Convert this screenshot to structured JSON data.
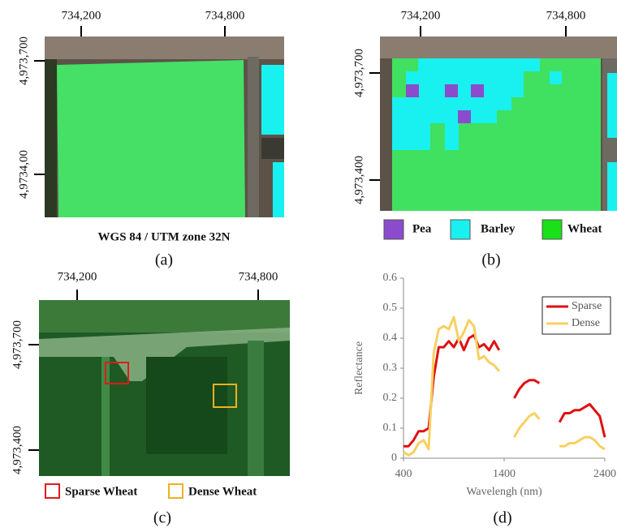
{
  "panels": [
    {
      "label": "(a)",
      "x_ticks": [
        "734,200",
        "734,800"
      ],
      "y_ticks": [
        "4,973,700",
        "4,9734,00"
      ],
      "caption": "WGS 84 / UTM zone 32N"
    },
    {
      "label": "(b)",
      "x_ticks": [
        "734,200",
        "734,800"
      ],
      "y_ticks": [
        "4,973,700",
        "4,973,400"
      ],
      "legend": [
        "Pea",
        "Barley",
        "Wheat"
      ]
    },
    {
      "label": "(c)",
      "x_ticks": [
        "734,200",
        "734,800"
      ],
      "y_ticks": [
        "4,973,700",
        "4,973,400"
      ],
      "legend": [
        "Sparse Wheat",
        "Dense Wheat"
      ]
    }
  ],
  "chart_data": {
    "type": "line",
    "panel_label": "(d)",
    "x_label": "Wavelengh (nm)",
    "y_label": "Reflectance",
    "x": [
      400,
      450,
      500,
      550,
      600,
      650,
      700,
      750,
      800,
      850,
      900,
      950,
      1000,
      1050,
      1100,
      1150,
      1200,
      1250,
      1300,
      1350,
      1400,
      1450,
      1500,
      1550,
      1600,
      1650,
      1700,
      1750,
      1800,
      1850,
      1900,
      1950,
      2000,
      2050,
      2100,
      2150,
      2200,
      2250,
      2300,
      2350,
      2400
    ],
    "series": [
      {
        "name": "Sparse",
        "color": "#e01010",
        "values": [
          0.04,
          0.04,
          0.06,
          0.09,
          0.09,
          0.1,
          0.27,
          0.37,
          0.37,
          0.39,
          0.37,
          0.4,
          0.36,
          0.4,
          0.41,
          0.37,
          0.38,
          0.36,
          0.39,
          0.36,
          null,
          null,
          0.2,
          0.23,
          0.25,
          0.26,
          0.26,
          0.25,
          null,
          null,
          null,
          0.12,
          0.15,
          0.15,
          0.16,
          0.16,
          0.17,
          0.18,
          0.16,
          0.14,
          0.07
        ]
      },
      {
        "name": "Dense",
        "color": "#f7d060",
        "values": [
          0.02,
          0.01,
          0.02,
          0.05,
          0.06,
          0.03,
          0.35,
          0.43,
          0.44,
          0.43,
          0.47,
          0.39,
          0.42,
          0.46,
          0.44,
          0.33,
          0.34,
          0.32,
          0.31,
          0.29,
          null,
          null,
          0.07,
          0.1,
          0.12,
          0.14,
          0.15,
          0.13,
          null,
          null,
          null,
          0.04,
          0.04,
          0.05,
          0.05,
          0.06,
          0.07,
          0.07,
          0.06,
          0.04,
          0.03
        ]
      }
    ],
    "xlim": [
      400,
      2400
    ],
    "xticks": [
      400,
      1400,
      2400
    ],
    "ylim": [
      0,
      0.6
    ],
    "yticks": [
      0,
      0.1,
      0.2,
      0.3,
      0.4,
      0.5,
      0.6
    ],
    "grid": false,
    "legend": "upper right"
  }
}
